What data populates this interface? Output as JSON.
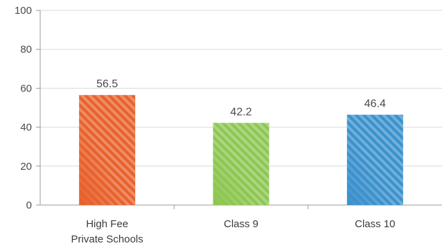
{
  "chart_data": {
    "type": "bar",
    "categories": [
      [
        "High Fee",
        "Private Schools"
      ],
      [
        "Class 9"
      ],
      [
        "Class 10"
      ]
    ],
    "values": [
      56.5,
      42.2,
      46.4
    ],
    "value_labels": [
      "56.5",
      "42.2",
      "46.4"
    ],
    "bar_colors": [
      "#e8612c",
      "#8dc651",
      "#3b91cd"
    ],
    "ylim": [
      0,
      100
    ],
    "yticks": [
      0,
      20,
      40,
      60,
      80,
      100
    ],
    "grid": true,
    "title": "",
    "xlabel": "",
    "ylabel": ""
  }
}
